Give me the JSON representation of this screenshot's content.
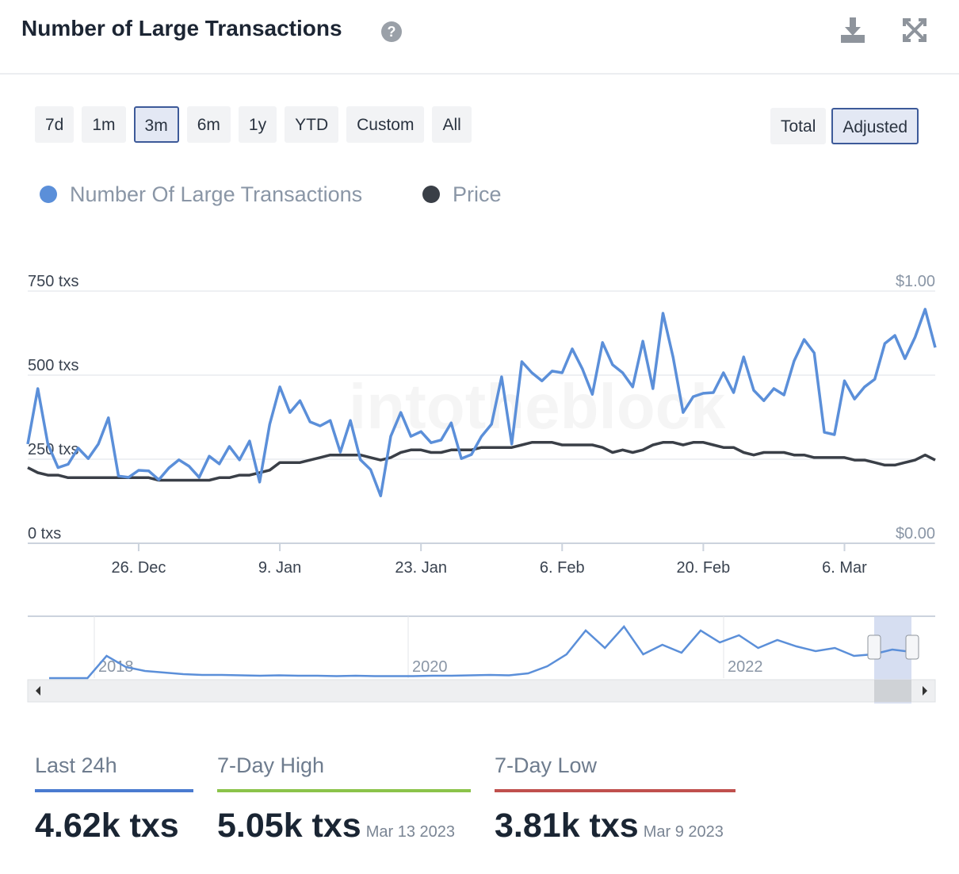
{
  "header": {
    "title": "Number of Large Transactions"
  },
  "range_buttons": {
    "items": [
      "7d",
      "1m",
      "3m",
      "6m",
      "1y",
      "YTD",
      "Custom",
      "All"
    ],
    "selected": 2
  },
  "mode_buttons": {
    "items": [
      "Total",
      "Adjusted"
    ],
    "selected": 1
  },
  "chart_data": {
    "type": "line",
    "watermark": "intotheblock",
    "categories": [
      null,
      null,
      null,
      null,
      null,
      null,
      null,
      null,
      null,
      null,
      null,
      "26. Dec",
      null,
      null,
      null,
      null,
      null,
      null,
      null,
      null,
      null,
      null,
      null,
      null,
      null,
      "9. Jan",
      null,
      null,
      null,
      null,
      null,
      null,
      null,
      null,
      null,
      null,
      null,
      null,
      null,
      "23. Jan",
      null,
      null,
      null,
      null,
      null,
      null,
      null,
      null,
      null,
      null,
      null,
      null,
      null,
      "6. Feb",
      null,
      null,
      null,
      null,
      null,
      null,
      null,
      null,
      null,
      null,
      null,
      null,
      null,
      "20. Feb",
      null,
      null,
      null,
      null,
      null,
      null,
      null,
      null,
      null,
      null,
      null,
      null,
      null,
      "6. Mar",
      null,
      null,
      null,
      null,
      null,
      null,
      null,
      null,
      null
    ],
    "series": [
      {
        "name": "Number Of Large Transactions",
        "color": "#5b8fd9",
        "values": [
          295,
          460,
          295,
          225,
          235,
          283,
          252,
          295,
          373,
          200,
          196,
          217,
          215,
          189,
          224,
          248,
          229,
          196,
          259,
          236,
          288,
          248,
          304,
          182,
          354,
          465,
          389,
          424,
          361,
          349,
          365,
          271,
          365,
          248,
          219,
          141,
          318,
          389,
          318,
          332,
          299,
          307,
          358,
          252,
          264,
          318,
          354,
          495,
          295,
          540,
          507,
          483,
          512,
          507,
          578,
          519,
          443,
          597,
          531,
          507,
          465,
          601,
          460,
          684,
          554,
          389,
          436,
          446,
          448,
          507,
          448,
          554,
          455,
          424,
          460,
          441,
          542,
          606,
          566,
          330,
          323,
          483,
          429,
          465,
          488,
          594,
          618,
          549,
          613,
          696,
          582
        ]
      },
      {
        "name": "Price",
        "color": "#3a3f47",
        "axis": "y2",
        "values": [
          0.3,
          0.28,
          0.27,
          0.27,
          0.26,
          0.26,
          0.26,
          0.26,
          0.26,
          0.26,
          0.26,
          0.26,
          0.26,
          0.25,
          0.25,
          0.25,
          0.25,
          0.25,
          0.25,
          0.26,
          0.26,
          0.27,
          0.27,
          0.28,
          0.29,
          0.32,
          0.32,
          0.32,
          0.33,
          0.34,
          0.35,
          0.35,
          0.35,
          0.35,
          0.34,
          0.33,
          0.34,
          0.36,
          0.37,
          0.37,
          0.36,
          0.36,
          0.37,
          0.37,
          0.37,
          0.38,
          0.38,
          0.38,
          0.38,
          0.39,
          0.4,
          0.4,
          0.4,
          0.39,
          0.39,
          0.39,
          0.39,
          0.38,
          0.36,
          0.37,
          0.36,
          0.37,
          0.39,
          0.4,
          0.4,
          0.39,
          0.4,
          0.4,
          0.39,
          0.38,
          0.38,
          0.36,
          0.35,
          0.36,
          0.36,
          0.36,
          0.35,
          0.35,
          0.34,
          0.34,
          0.34,
          0.34,
          0.33,
          0.33,
          0.32,
          0.31,
          0.31,
          0.32,
          0.33,
          0.35,
          0.33
        ]
      }
    ],
    "ylim": [
      0,
      750
    ],
    "yticks": [
      {
        "value": 0,
        "label": "0 txs"
      },
      {
        "value": 250,
        "label": "250 txs"
      },
      {
        "value": 500,
        "label": "500 txs"
      },
      {
        "value": 750,
        "label": "750 txs"
      }
    ],
    "y2lim": [
      0,
      1
    ],
    "y2ticks": [
      {
        "value": 0,
        "label": "$0.00"
      },
      {
        "value": 1,
        "label": "$1.00"
      }
    ],
    "grid": true,
    "navigator": {
      "labels": [
        "2018",
        "2020",
        "2022"
      ],
      "values": [
        0,
        0,
        0,
        280,
        140,
        90,
        70,
        50,
        40,
        40,
        35,
        30,
        35,
        30,
        30,
        25,
        30,
        25,
        25,
        25,
        30,
        30,
        35,
        40,
        35,
        60,
        150,
        300,
        600,
        380,
        650,
        300,
        420,
        320,
        600,
        450,
        540,
        380,
        480,
        400,
        340,
        380,
        280,
        300,
        360,
        330
      ]
    }
  },
  "stats": [
    {
      "label": "Last 24h",
      "value": "4.62k txs",
      "color": "#4a7bd0"
    },
    {
      "label": "7-Day High",
      "value": "5.05k txs",
      "date": "Mar 13 2023",
      "color": "#8bc34a"
    },
    {
      "label": "7-Day Low",
      "value": "3.81k txs",
      "date": "Mar 9 2023",
      "color": "#c0504d"
    }
  ]
}
